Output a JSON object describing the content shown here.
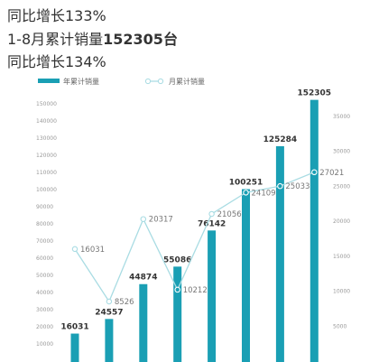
{
  "headline": {
    "growth_top": "同比增长133%",
    "cumulative_prefix": "1-8月累计销量",
    "cumulative_value": "152305台",
    "growth_bottom": "同比增长134%"
  },
  "colors": {
    "bar": "#1a9fb4",
    "line": "#a9dce3"
  },
  "chart_data": {
    "type": "bar",
    "legend_position": "top-left",
    "series": [
      {
        "name": "年累计销量",
        "type": "bar",
        "axis": "left",
        "values": [
          16031,
          24557,
          44874,
          55086,
          76142,
          100251,
          125284,
          152305
        ],
        "labels": [
          "16031",
          "24557",
          "44874",
          "55086",
          "76142",
          "100251",
          "125284",
          "152305"
        ]
      },
      {
        "name": "月累计销量",
        "type": "line",
        "axis": "right",
        "values": [
          16031,
          8526,
          20317,
          10212,
          21056,
          24109,
          25033,
          27021
        ],
        "labels": [
          "16031",
          "8526",
          "20317",
          "10212",
          "21056",
          "24109",
          "25033",
          "27021"
        ]
      }
    ],
    "y_left": {
      "range": [
        0,
        150000
      ],
      "ticks": [
        "10000",
        "20000",
        "30000",
        "40000",
        "50000",
        "60000",
        "70000",
        "80000",
        "90000",
        "100000",
        "110000",
        "120000",
        "130000",
        "140000",
        "150000"
      ]
    },
    "y_right": {
      "range": [
        0,
        35000
      ],
      "ticks": [
        "5000",
        "10000",
        "15000",
        "20000",
        "25000",
        "30000",
        "35000"
      ]
    }
  }
}
